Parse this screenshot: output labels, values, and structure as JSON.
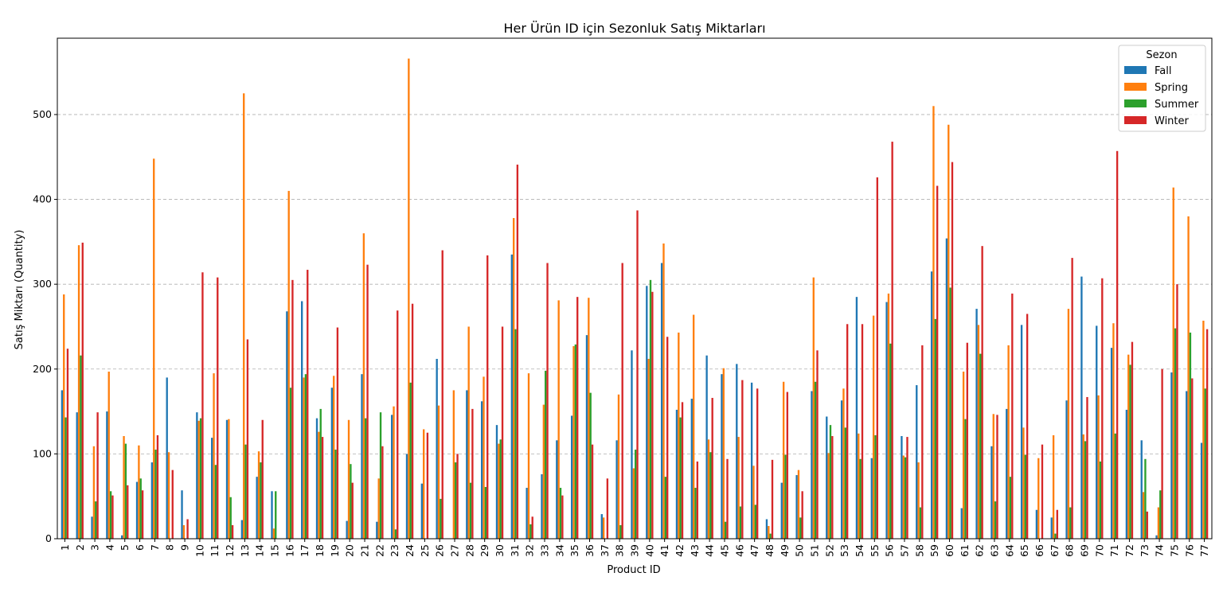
{
  "chart_data": {
    "type": "bar",
    "title": "Her Ürün ID için Sezonluk Satış Miktarları",
    "xlabel": "Product ID",
    "ylabel": "Satış Miktarı (Quantity)",
    "ylim": [
      0,
      590
    ],
    "yticks": [
      0,
      100,
      200,
      300,
      400,
      500
    ],
    "grid": "y, dashed",
    "legend": {
      "title": "Sezon",
      "position": "top-right"
    },
    "categories": [
      "1",
      "2",
      "3",
      "4",
      "5",
      "6",
      "7",
      "8",
      "9",
      "10",
      "11",
      "12",
      "13",
      "14",
      "15",
      "16",
      "17",
      "18",
      "19",
      "20",
      "21",
      "22",
      "23",
      "24",
      "25",
      "26",
      "27",
      "28",
      "29",
      "30",
      "31",
      "32",
      "33",
      "34",
      "35",
      "36",
      "37",
      "38",
      "39",
      "40",
      "41",
      "42",
      "43",
      "44",
      "45",
      "46",
      "47",
      "48",
      "49",
      "50",
      "51",
      "52",
      "53",
      "54",
      "55",
      "56",
      "57",
      "58",
      "59",
      "60",
      "61",
      "62",
      "63",
      "64",
      "65",
      "66",
      "67",
      "68",
      "69",
      "70",
      "71",
      "72",
      "73",
      "74",
      "75",
      "76",
      "77"
    ],
    "series": [
      {
        "name": "Fall",
        "color": "#1f77b4",
        "values": [
          175,
          149,
          26,
          150,
          4,
          67,
          90,
          190,
          57,
          149,
          119,
          140,
          22,
          73,
          56,
          268,
          280,
          142,
          178,
          21,
          194,
          20,
          146,
          100,
          65,
          212,
          0,
          175,
          162,
          134,
          335,
          60,
          76,
          116,
          145,
          240,
          29,
          116,
          222,
          298,
          325,
          152,
          165,
          216,
          194,
          206,
          184,
          23,
          66,
          75,
          174,
          144,
          163,
          285,
          95,
          279,
          121,
          181,
          315,
          354,
          36,
          271,
          109,
          153,
          252,
          34,
          25,
          163,
          309,
          251,
          225,
          152,
          116,
          4,
          196,
          174,
          113
        ]
      },
      {
        "name": "Spring",
        "color": "#ff7f0e",
        "values": [
          288,
          346,
          109,
          197,
          121,
          110,
          448,
          102,
          16,
          139,
          195,
          141,
          525,
          103,
          12,
          410,
          190,
          126,
          192,
          140,
          360,
          71,
          156,
          566,
          129,
          157,
          175,
          250,
          191,
          112,
          378,
          195,
          158,
          281,
          227,
          284,
          25,
          170,
          83,
          212,
          348,
          243,
          264,
          117,
          201,
          120,
          86,
          15,
          185,
          81,
          308,
          101,
          177,
          124,
          263,
          289,
          98,
          90,
          510,
          488,
          197,
          252,
          147,
          228,
          131,
          95,
          122,
          271,
          123,
          169,
          254,
          217,
          55,
          37,
          414,
          380,
          257
        ]
      },
      {
        "name": "Summer",
        "color": "#2ca02c",
        "values": [
          143,
          216,
          44,
          56,
          112,
          71,
          105,
          0,
          0,
          142,
          87,
          49,
          111,
          90,
          56,
          178,
          194,
          153,
          105,
          88,
          142,
          149,
          11,
          184,
          0,
          47,
          90,
          66,
          61,
          117,
          247,
          17,
          198,
          60,
          229,
          172,
          0,
          16,
          105,
          305,
          73,
          143,
          60,
          102,
          20,
          38,
          40,
          6,
          99,
          25,
          185,
          134,
          131,
          94,
          122,
          230,
          96,
          37,
          259,
          296,
          141,
          218,
          44,
          73,
          99,
          0,
          6,
          37,
          115,
          91,
          124,
          205,
          94,
          57,
          248,
          243,
          177
        ]
      },
      {
        "name": "Winter",
        "color": "#d62728",
        "values": [
          224,
          349,
          149,
          51,
          63,
          57,
          122,
          81,
          23,
          314,
          308,
          16,
          235,
          140,
          0,
          305,
          317,
          120,
          249,
          66,
          323,
          109,
          269,
          277,
          125,
          340,
          100,
          153,
          334,
          250,
          441,
          26,
          325,
          51,
          285,
          111,
          71,
          325,
          387,
          291,
          238,
          161,
          91,
          166,
          94,
          187,
          177,
          93,
          173,
          56,
          222,
          121,
          253,
          253,
          426,
          468,
          120,
          228,
          416,
          444,
          231,
          345,
          146,
          289,
          265,
          111,
          34,
          331,
          167,
          307,
          457,
          232,
          32,
          200,
          300,
          189,
          247
        ]
      }
    ]
  }
}
